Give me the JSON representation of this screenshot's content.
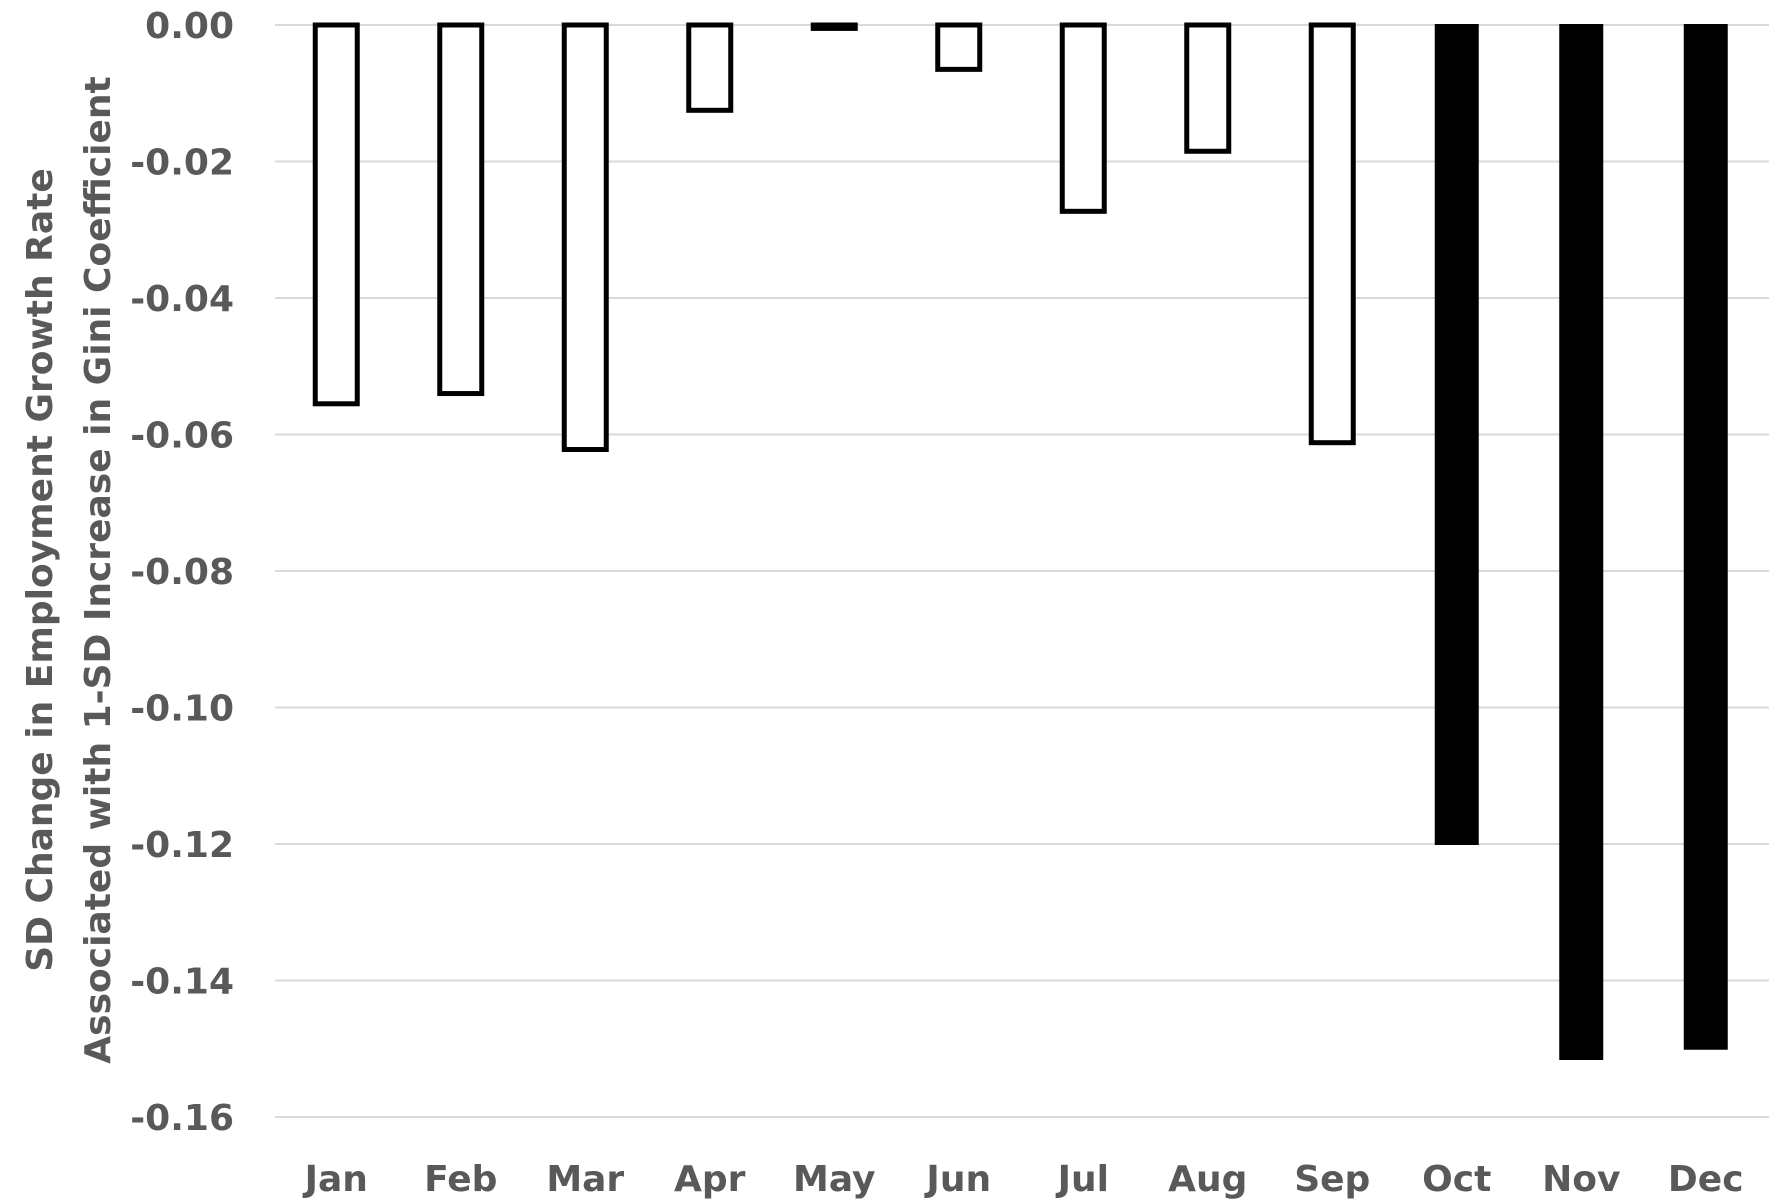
{
  "chart_data": {
    "type": "bar",
    "title": "",
    "xlabel": "",
    "ylabel_lines": [
      "SD Change in Employment Growth Rate",
      "Associated with 1-SD Increase in Gini Coefficient"
    ],
    "categories": [
      "Jan",
      "Feb",
      "Mar",
      "Apr",
      "May",
      "Jun",
      "Jul",
      "Aug",
      "Sep",
      "Oct",
      "Nov",
      "Dec"
    ],
    "values": [
      -0.0555,
      -0.054,
      -0.0622,
      -0.0125,
      -0.0005,
      -0.0065,
      -0.0273,
      -0.0185,
      -0.0612,
      -0.12,
      -0.1515,
      -0.15
    ],
    "filled": [
      false,
      false,
      false,
      false,
      false,
      false,
      false,
      false,
      false,
      true,
      true,
      true
    ],
    "ylim": [
      -0.16,
      0.0
    ],
    "yticks": [
      "0.00",
      "-0.02",
      "-0.04",
      "-0.06",
      "-0.08",
      "-0.10",
      "-0.12",
      "-0.14",
      "-0.16"
    ],
    "grid": true,
    "colors": {
      "hollow_fill": "#ffffff",
      "solid_fill": "#000000",
      "outline": "#000000",
      "grid": "#d9d9d9",
      "text": "#595959"
    }
  }
}
